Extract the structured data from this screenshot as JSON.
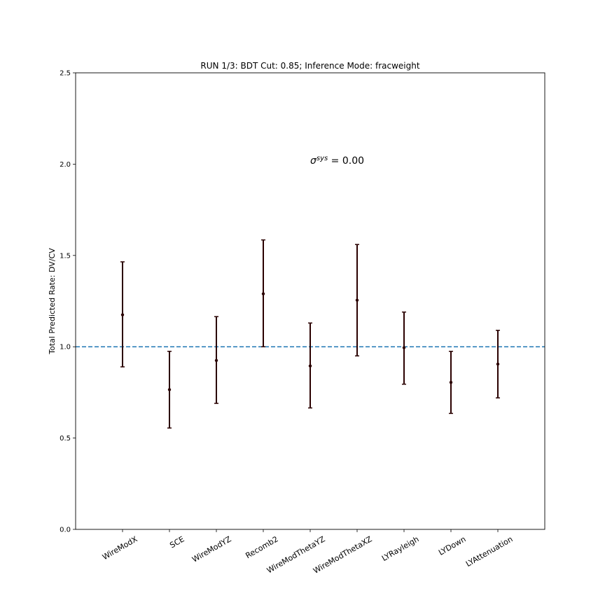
{
  "chart_data": {
    "type": "scatter",
    "title": "RUN 1/3: BDT Cut: 0.85; Inference Mode: fracweight",
    "ylabel": "Total Predicted Rate: DV/CV",
    "xlabel": "",
    "ylim": [
      0.0,
      2.5
    ],
    "yticks": [
      "0.0",
      "0.5",
      "1.0",
      "1.5",
      "2.0",
      "2.5"
    ],
    "categories": [
      "WireModX",
      "SCE",
      "WireModYZ",
      "Recomb2",
      "WireModThetaYZ",
      "WireModThetaXZ",
      "LYRayleigh",
      "LYDown",
      "LYAttenuation"
    ],
    "values": [
      1.175,
      0.765,
      0.925,
      1.29,
      0.895,
      1.255,
      0.995,
      0.805,
      0.905
    ],
    "err_low": [
      0.89,
      0.555,
      0.69,
      1.0,
      0.665,
      0.95,
      0.795,
      0.635,
      0.72
    ],
    "err_high": [
      1.465,
      0.975,
      1.165,
      1.585,
      1.13,
      1.56,
      1.19,
      0.975,
      1.09
    ],
    "reference_line": 1.0,
    "reference_color": "#1f77b4",
    "marker_color": "#2a0000",
    "annotation": {
      "base": "σ",
      "superscript": "sys",
      "value_text": " = 0.00",
      "x_index": 4,
      "y": 2.02
    },
    "grid": false,
    "legend": "none"
  }
}
